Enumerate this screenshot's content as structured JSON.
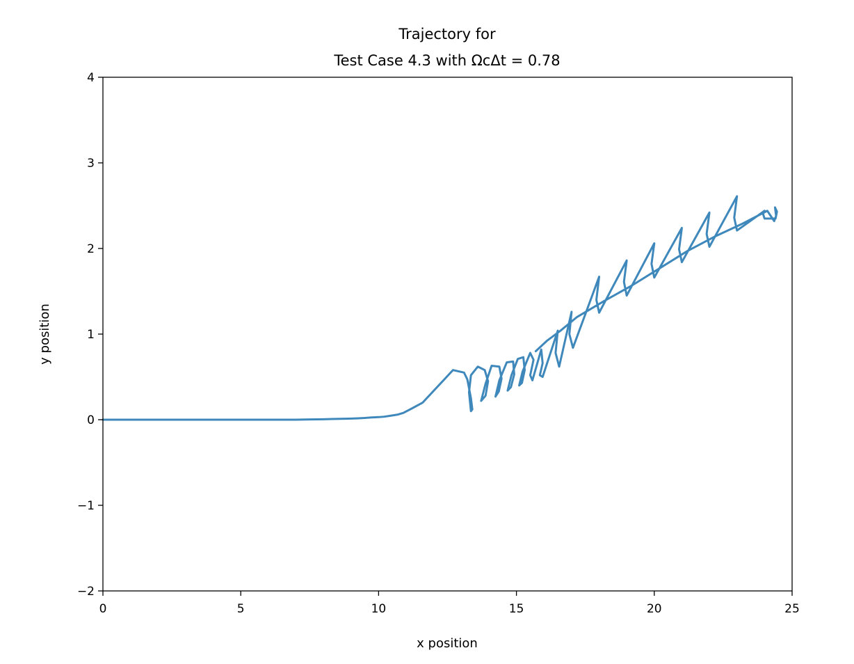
{
  "chart_data": {
    "type": "line",
    "title_lines": [
      "Trajectory for",
      "Test Case 4.3 with ΩcΔt = 0.78"
    ],
    "xlabel": "x position",
    "ylabel": "y position",
    "xlim": [
      0,
      25
    ],
    "ylim": [
      -2,
      4
    ],
    "xticks": [
      0,
      5,
      10,
      15,
      20,
      25
    ],
    "xtick_labels": [
      "0",
      "5",
      "10",
      "15",
      "20",
      "25"
    ],
    "yticks": [
      -2,
      -1,
      0,
      1,
      2,
      3,
      4
    ],
    "ytick_labels": [
      "−2",
      "−1",
      "0",
      "1",
      "2",
      "3",
      "4"
    ],
    "grid": false,
    "legend": "none",
    "series": [
      {
        "color": "#3f88bb",
        "x": [
          0.0,
          4.0,
          6.0,
          7.0,
          7.5,
          8.0,
          8.3,
          8.6,
          8.9,
          9.2,
          9.5,
          9.7,
          10.0,
          10.2,
          10.4,
          10.7,
          10.9,
          11.2,
          11.6,
          12.7,
          13.1,
          13.22,
          13.35,
          13.4,
          13.35,
          13.28,
          13.35,
          13.6,
          13.85,
          13.97,
          13.88,
          13.72,
          13.88,
          14.1,
          14.38,
          14.46,
          14.36,
          14.24,
          14.38,
          14.65,
          14.88,
          14.92,
          14.8,
          14.68,
          14.82,
          15.05,
          15.25,
          15.3,
          15.2,
          15.1,
          15.22,
          15.5,
          15.62,
          15.5,
          15.58,
          15.9,
          15.95,
          15.85,
          15.95,
          16.5,
          16.42,
          16.55,
          17.0,
          16.92,
          17.05,
          18.0,
          17.9,
          18.0,
          19.0,
          18.9,
          19.0,
          20.0,
          19.9,
          20.0,
          21.0,
          20.9,
          21.0,
          22.0,
          21.9,
          22.0,
          23.0,
          22.9,
          23.0,
          24.0,
          23.95,
          24.0,
          24.4,
          24.45,
          24.38,
          24.42,
          24.35,
          24.1,
          23.2,
          22.2,
          21.2,
          20.2,
          19.2,
          18.2,
          17.2,
          16.6,
          16.1,
          15.7
        ],
        "y": [
          0.0,
          0.0,
          0.0,
          0.0,
          0.003,
          0.005,
          0.008,
          0.01,
          0.012,
          0.015,
          0.02,
          0.025,
          0.03,
          0.035,
          0.045,
          0.06,
          0.08,
          0.13,
          0.2,
          0.58,
          0.55,
          0.47,
          0.25,
          0.12,
          0.1,
          0.32,
          0.52,
          0.62,
          0.58,
          0.45,
          0.28,
          0.22,
          0.42,
          0.63,
          0.62,
          0.48,
          0.33,
          0.27,
          0.46,
          0.67,
          0.68,
          0.53,
          0.38,
          0.34,
          0.52,
          0.71,
          0.73,
          0.58,
          0.43,
          0.4,
          0.56,
          0.78,
          0.7,
          0.52,
          0.46,
          0.82,
          0.66,
          0.52,
          0.5,
          1.04,
          0.78,
          0.62,
          1.26,
          1.0,
          0.84,
          1.67,
          1.4,
          1.25,
          1.86,
          1.61,
          1.45,
          2.06,
          1.82,
          1.66,
          2.24,
          1.99,
          1.84,
          2.42,
          2.17,
          2.02,
          2.61,
          2.36,
          2.21,
          2.44,
          2.4,
          2.35,
          2.35,
          2.43,
          2.48,
          2.38,
          2.32,
          2.44,
          2.29,
          2.14,
          1.97,
          1.77,
          1.57,
          1.39,
          1.2,
          1.04,
          0.92,
          0.8
        ]
      }
    ]
  }
}
